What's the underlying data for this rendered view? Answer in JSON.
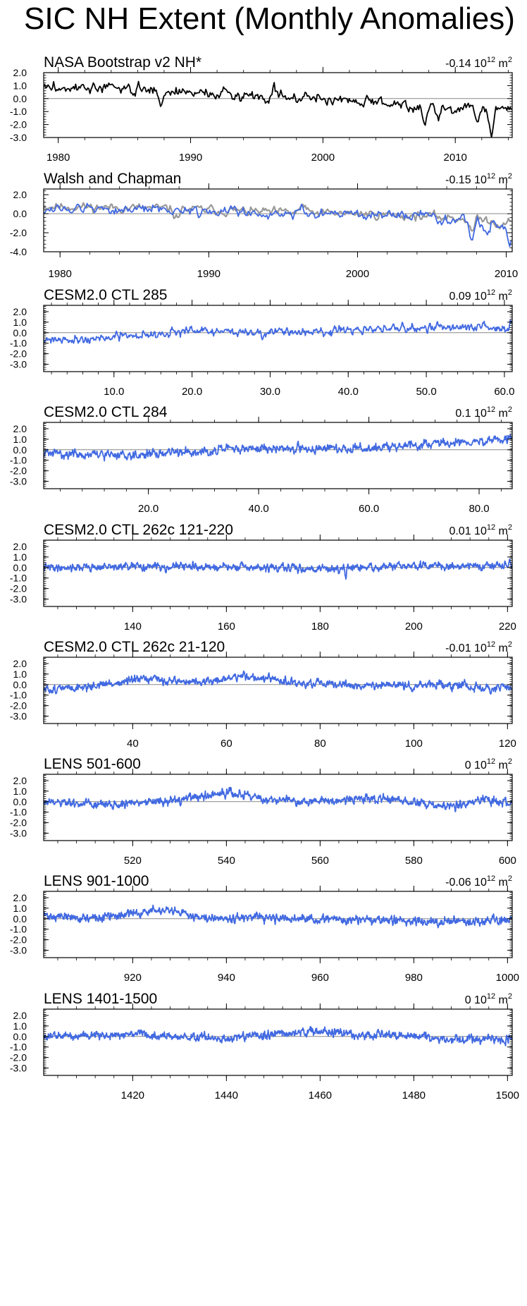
{
  "page": {
    "title": "SIC NH Extent (Monthly Anomalies)"
  },
  "colors": {
    "obs": "#000000",
    "model": "#4169e1",
    "obs_overlay": "#999999",
    "zero_line": "#888888"
  },
  "chart_data": [
    {
      "type": "line",
      "title": "NASA Bootstrap v2 NH*",
      "trend_value": "-0.14",
      "trend_unit": "10",
      "trend_exp": "12",
      "trend_unit2": "m",
      "trend_exp2": "2",
      "xlim": [
        1978.9,
        2014.3
      ],
      "ylim": [
        -3.0,
        2.0
      ],
      "yticks": [
        "2.0",
        "1.0",
        "0.0",
        "-1.0",
        "-2.0",
        "-3.0"
      ],
      "ytick_values": [
        2,
        1,
        0,
        -1,
        -2,
        -3
      ],
      "xticks": [
        "1980",
        "1990",
        "2000",
        "2010"
      ],
      "xtick_values": [
        1980,
        1990,
        2000,
        2010
      ],
      "series": [
        {
          "role": "primary",
          "color": "#000000",
          "start": 1978.9,
          "step": 0.0833333,
          "n": 425,
          "seed": 3,
          "anchors": [
            [
              1978.9,
              0.85
            ],
            [
              1985,
              0.75
            ],
            [
              1990,
              0.5
            ],
            [
              1995,
              0.2
            ],
            [
              2000,
              0.0
            ],
            [
              2005,
              -0.35
            ],
            [
              2010,
              -0.75
            ],
            [
              2014.3,
              -0.7
            ]
          ],
          "noise": 0.32,
          "spikes": [
            [
              1987.8,
              -1.0
            ],
            [
              1996.3,
              1.3
            ],
            [
              2007.7,
              -1.6
            ],
            [
              2012.7,
              -2.3
            ],
            [
              2011.7,
              -1.1
            ],
            [
              2008.7,
              -1.0
            ]
          ]
        }
      ]
    },
    {
      "type": "line",
      "title": "Walsh and Chapman",
      "trend_value": "-0.15",
      "trend_unit": "10",
      "trend_exp": "12",
      "trend_unit2": "m",
      "trend_exp2": "2",
      "xlim": [
        1978.9,
        2010.4
      ],
      "ylim": [
        -4.0,
        2.6
      ],
      "yticks": [
        "2.0",
        "0.0",
        "-2.0",
        "-4.0"
      ],
      "ytick_values": [
        2,
        0,
        -2,
        -4
      ],
      "xticks": [
        "1980",
        "1990",
        "2000",
        "2010"
      ],
      "xtick_values": [
        1980,
        1990,
        2000,
        2010
      ],
      "series": [
        {
          "role": "overlay",
          "color": "#999999",
          "start": 1978.9,
          "step": 0.0833333,
          "n": 378,
          "seed": 11,
          "anchors": [
            [
              1978.9,
              0.8
            ],
            [
              1985,
              0.6
            ],
            [
              1990,
              0.4
            ],
            [
              1995,
              0.1
            ],
            [
              2000,
              0.0
            ],
            [
              2005,
              -0.3
            ],
            [
              2010.4,
              -0.8
            ]
          ],
          "noise": 0.35,
          "spikes": [
            [
              1987.8,
              -1.0
            ],
            [
              1996.3,
              1.0
            ],
            [
              2007.7,
              -1.5
            ],
            [
              2009.5,
              -0.6
            ]
          ]
        },
        {
          "role": "primary",
          "color": "#4169e1",
          "start": 1978.9,
          "step": 0.0833333,
          "n": 378,
          "seed": 12,
          "anchors": [
            [
              1978.9,
              0.5
            ],
            [
              1985,
              0.5
            ],
            [
              1990,
              0.3
            ],
            [
              1995,
              0.0
            ],
            [
              2000,
              -0.1
            ],
            [
              2005,
              -0.4
            ],
            [
              2010.4,
              -1.2
            ]
          ],
          "noise": 0.4,
          "spikes": [
            [
              1996.3,
              1.0
            ],
            [
              2007.7,
              -2.4
            ],
            [
              2008.7,
              -1.5
            ],
            [
              2010.2,
              -1.8
            ]
          ]
        }
      ]
    },
    {
      "type": "line",
      "title": "CESM2.0 CTL 285",
      "trend_value": "0.09",
      "trend_unit": "10",
      "trend_exp": "12",
      "trend_unit2": "m",
      "trend_exp2": "2",
      "xlim": [
        1,
        61
      ],
      "ylim": [
        -3.7,
        2.6
      ],
      "yticks": [
        "2.0",
        "1.0",
        "0.0",
        "-1.0",
        "-2.0",
        "-3.0"
      ],
      "ytick_values": [
        2,
        1,
        0,
        -1,
        -2,
        -3
      ],
      "xticks": [
        "10.0",
        "20.0",
        "30.0",
        "40.0",
        "50.0",
        "60.0"
      ],
      "xtick_values": [
        10,
        20,
        30,
        40,
        50,
        60
      ],
      "series": [
        {
          "role": "primary",
          "color": "#4169e1",
          "start": 1,
          "step": 0.0833333,
          "n": 720,
          "seed": 21,
          "anchors": [
            [
              1,
              -0.6
            ],
            [
              8,
              -0.6
            ],
            [
              12,
              -0.3
            ],
            [
              20,
              0.15
            ],
            [
              30,
              0.0
            ],
            [
              40,
              0.15
            ],
            [
              50,
              0.55
            ],
            [
              55,
              0.55
            ],
            [
              61,
              0.35
            ]
          ],
          "noise": 0.3,
          "spikes": [
            [
              60.8,
              0.6
            ]
          ]
        }
      ]
    },
    {
      "type": "line",
      "title": "CESM2.0 CTL 284",
      "trend_value": "0.1",
      "trend_unit": "10",
      "trend_exp": "12",
      "trend_unit2": "m",
      "trend_exp2": "2",
      "xlim": [
        1,
        86
      ],
      "ylim": [
        -3.7,
        2.6
      ],
      "yticks": [
        "2.0",
        "1.0",
        "0.0",
        "-1.0",
        "-2.0",
        "-3.0"
      ],
      "ytick_values": [
        2,
        1,
        0,
        -1,
        -2,
        -3
      ],
      "xticks": [
        "20.0",
        "40.0",
        "60.0",
        "80.0"
      ],
      "xtick_values": [
        20,
        40,
        60,
        80
      ],
      "series": [
        {
          "role": "primary",
          "color": "#4169e1",
          "start": 1,
          "step": 0.0833333,
          "n": 1020,
          "seed": 31,
          "anchors": [
            [
              1,
              -0.3
            ],
            [
              10,
              -0.5
            ],
            [
              20,
              -0.4
            ],
            [
              30,
              -0.1
            ],
            [
              40,
              0.15
            ],
            [
              50,
              0.1
            ],
            [
              60,
              0.1
            ],
            [
              70,
              0.5
            ],
            [
              80,
              0.8
            ],
            [
              86,
              1.0
            ]
          ],
          "noise": 0.32,
          "spikes": [
            [
              85.5,
              0.6
            ]
          ]
        }
      ]
    },
    {
      "type": "line",
      "title": "CESM2.0 CTL 262c 121-220",
      "trend_value": "0.01",
      "trend_unit": "10",
      "trend_exp": "12",
      "trend_unit2": "m",
      "trend_exp2": "2",
      "xlim": [
        121,
        221
      ],
      "ylim": [
        -3.7,
        2.6
      ],
      "yticks": [
        "2.0",
        "1.0",
        "0.0",
        "-1.0",
        "-2.0",
        "-3.0"
      ],
      "ytick_values": [
        2,
        1,
        0,
        -1,
        -2,
        -3
      ],
      "xticks": [
        "140",
        "160",
        "180",
        "200",
        "220"
      ],
      "xtick_values": [
        140,
        160,
        180,
        200,
        220
      ],
      "series": [
        {
          "role": "primary",
          "color": "#4169e1",
          "start": 121,
          "step": 0.0833333,
          "n": 1200,
          "seed": 41,
          "anchors": [
            [
              121,
              0.0
            ],
            [
              150,
              0.1
            ],
            [
              170,
              -0.05
            ],
            [
              185,
              -0.1
            ],
            [
              200,
              0.15
            ],
            [
              221,
              0.2
            ]
          ],
          "noise": 0.27,
          "spikes": [
            [
              185.5,
              -0.9
            ],
            [
              220.5,
              0.5
            ]
          ]
        }
      ]
    },
    {
      "type": "line",
      "title": "CESM2.0 CTL 262c 21-120",
      "trend_value": "-0.01",
      "trend_unit": "10",
      "trend_exp": "12",
      "trend_unit2": "m",
      "trend_exp2": "2",
      "xlim": [
        21,
        121
      ],
      "ylim": [
        -3.7,
        2.6
      ],
      "yticks": [
        "2.0",
        "1.0",
        "0.0",
        "-1.0",
        "-2.0",
        "-3.0"
      ],
      "ytick_values": [
        2,
        1,
        0,
        -1,
        -2,
        -3
      ],
      "xticks": [
        "40",
        "60",
        "80",
        "100",
        "120"
      ],
      "xtick_values": [
        40,
        60,
        80,
        100,
        120
      ],
      "series": [
        {
          "role": "primary",
          "color": "#4169e1",
          "start": 21,
          "step": 0.0833333,
          "n": 1200,
          "seed": 51,
          "anchors": [
            [
              21,
              -0.5
            ],
            [
              30,
              -0.2
            ],
            [
              43,
              0.5
            ],
            [
              55,
              0.2
            ],
            [
              64,
              0.85
            ],
            [
              75,
              0.1
            ],
            [
              90,
              -0.1
            ],
            [
              100,
              -0.1
            ],
            [
              110,
              0.0
            ],
            [
              116,
              -0.5
            ],
            [
              121,
              -0.2
            ]
          ],
          "noise": 0.28,
          "spikes": []
        }
      ]
    },
    {
      "type": "line",
      "title": "LENS 501-600",
      "trend_value": "0",
      "trend_unit": "10",
      "trend_exp": "12",
      "trend_unit2": "m",
      "trend_exp2": "2",
      "xlim": [
        501,
        601
      ],
      "ylim": [
        -3.7,
        2.6
      ],
      "yticks": [
        "2.0",
        "1.0",
        "0.0",
        "-1.0",
        "-2.0",
        "-3.0"
      ],
      "ytick_values": [
        2,
        1,
        0,
        -1,
        -2,
        -3
      ],
      "xticks": [
        "520",
        "540",
        "560",
        "580",
        "600"
      ],
      "xtick_values": [
        520,
        540,
        560,
        580,
        600
      ],
      "series": [
        {
          "role": "primary",
          "color": "#4169e1",
          "start": 501,
          "step": 0.0833333,
          "n": 1200,
          "seed": 61,
          "anchors": [
            [
              501,
              -0.1
            ],
            [
              515,
              -0.3
            ],
            [
              530,
              0.2
            ],
            [
              540,
              0.8
            ],
            [
              550,
              0.2
            ],
            [
              560,
              0.0
            ],
            [
              570,
              0.3
            ],
            [
              580,
              0.0
            ],
            [
              587,
              -0.6
            ],
            [
              595,
              0.2
            ],
            [
              601,
              -0.3
            ]
          ],
          "noise": 0.3,
          "spikes": []
        }
      ]
    },
    {
      "type": "line",
      "title": "LENS 901-1000",
      "trend_value": "-0.06",
      "trend_unit": "10",
      "trend_exp": "12",
      "trend_unit2": "m",
      "trend_exp2": "2",
      "xlim": [
        901,
        1001
      ],
      "ylim": [
        -3.7,
        2.6
      ],
      "yticks": [
        "2.0",
        "1.0",
        "0.0",
        "-1.0",
        "-2.0",
        "-3.0"
      ],
      "ytick_values": [
        2,
        1,
        0,
        -1,
        -2,
        -3
      ],
      "xticks": [
        "920",
        "940",
        "960",
        "980",
        "1000"
      ],
      "xtick_values": [
        920,
        940,
        960,
        980,
        1000
      ],
      "series": [
        {
          "role": "primary",
          "color": "#4169e1",
          "start": 901,
          "step": 0.0833333,
          "n": 1200,
          "seed": 71,
          "anchors": [
            [
              901,
              0.3
            ],
            [
              912,
              0.0
            ],
            [
              925,
              0.8
            ],
            [
              935,
              0.2
            ],
            [
              950,
              0.0
            ],
            [
              965,
              -0.1
            ],
            [
              980,
              -0.2
            ],
            [
              990,
              -0.3
            ],
            [
              1001,
              0.0
            ]
          ],
          "noise": 0.3,
          "spikes": []
        }
      ]
    },
    {
      "type": "line",
      "title": "LENS 1401-1500",
      "trend_value": "0",
      "trend_unit": "10",
      "trend_exp": "12",
      "trend_unit2": "m",
      "trend_exp2": "2",
      "xlim": [
        1401,
        1501
      ],
      "ylim": [
        -3.7,
        2.6
      ],
      "yticks": [
        "2.0",
        "1.0",
        "0.0",
        "-1.0",
        "-2.0",
        "-3.0"
      ],
      "ytick_values": [
        2,
        1,
        0,
        -1,
        -2,
        -3
      ],
      "xticks": [
        "1420",
        "1440",
        "1460",
        "1480",
        "1500"
      ],
      "xtick_values": [
        1420,
        1440,
        1460,
        1480,
        1500
      ],
      "series": [
        {
          "role": "primary",
          "color": "#4169e1",
          "start": 1401,
          "step": 0.0833333,
          "n": 1200,
          "seed": 81,
          "anchors": [
            [
              1401,
              0.0
            ],
            [
              1420,
              0.2
            ],
            [
              1440,
              -0.2
            ],
            [
              1458,
              0.5
            ],
            [
              1470,
              0.1
            ],
            [
              1480,
              0.0
            ],
            [
              1490,
              -0.2
            ],
            [
              1501,
              -0.3
            ]
          ],
          "noise": 0.3,
          "spikes": [
            [
              1499.5,
              -0.7
            ]
          ]
        }
      ]
    }
  ]
}
